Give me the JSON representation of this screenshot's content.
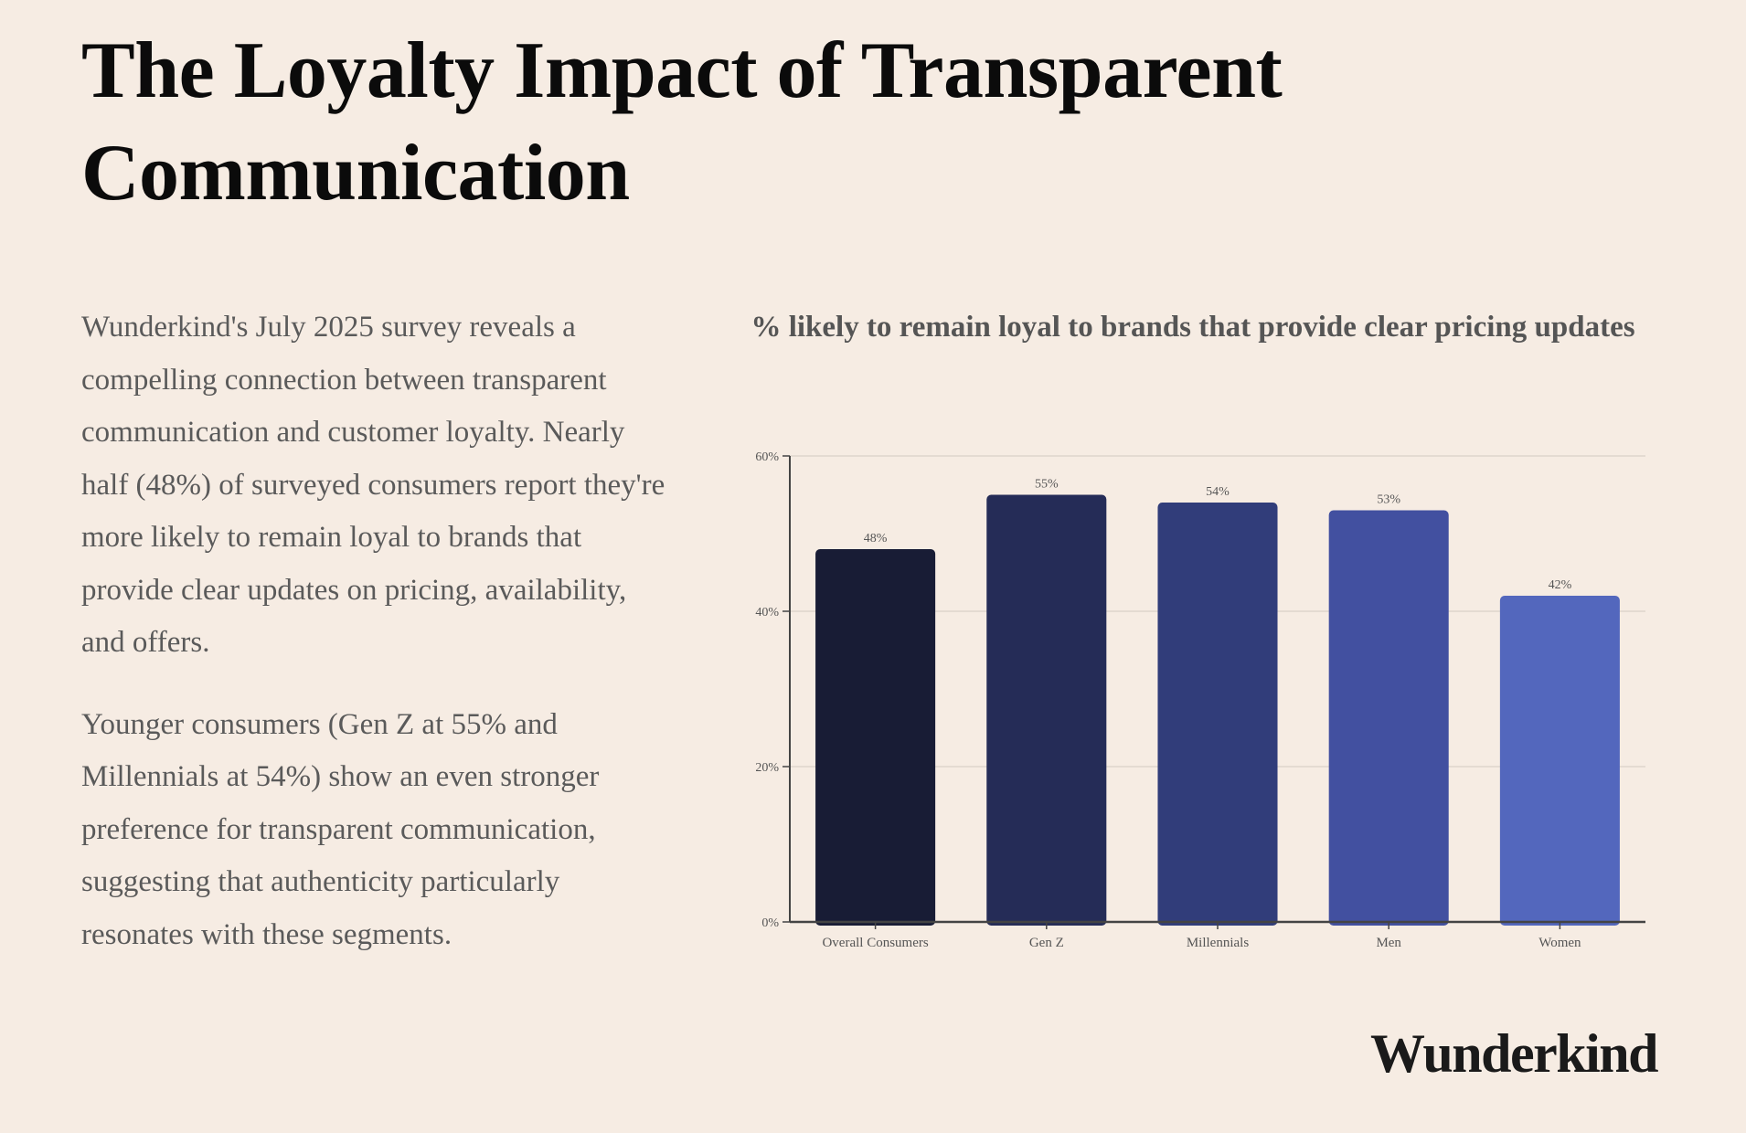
{
  "header": {
    "title": "The Loyalty Impact of Transparent Communication"
  },
  "body": {
    "paragraphs": [
      "Wunderkind's July 2025 survey reveals a compelling connection between transparent communication and customer loyalty. Nearly half (48%) of surveyed consumers report they're more likely to remain loyal to brands that provide clear updates on pricing, availability, and offers.",
      "Younger consumers (Gen Z at 55% and Millennials at 54%) show an even stronger preference for transparent communication, suggesting that authenticity particularly resonates with these segments."
    ]
  },
  "brand": {
    "name": "Wunderkind"
  },
  "chart_data": {
    "type": "bar",
    "title": "% likely to remain loyal to brands that provide clear pricing updates",
    "xlabel": "",
    "ylabel": "",
    "categories": [
      "Overall Consumers",
      "Gen Z",
      "Millennials",
      "Men",
      "Women"
    ],
    "values": [
      48,
      55,
      54,
      53,
      42
    ],
    "value_labels": [
      "48%",
      "55%",
      "54%",
      "53%",
      "42%"
    ],
    "ylim": [
      0,
      60
    ],
    "yticks": [
      0,
      20,
      40,
      60
    ],
    "ytick_labels": [
      "0%",
      "20%",
      "40%",
      "60%"
    ],
    "grid": true,
    "legend": "none",
    "colors": [
      "#181c35",
      "#252c57",
      "#313d7a",
      "#4250a0",
      "#5367bd"
    ],
    "gridline_color": "#ddd5cd",
    "axis_color": "#444444"
  }
}
